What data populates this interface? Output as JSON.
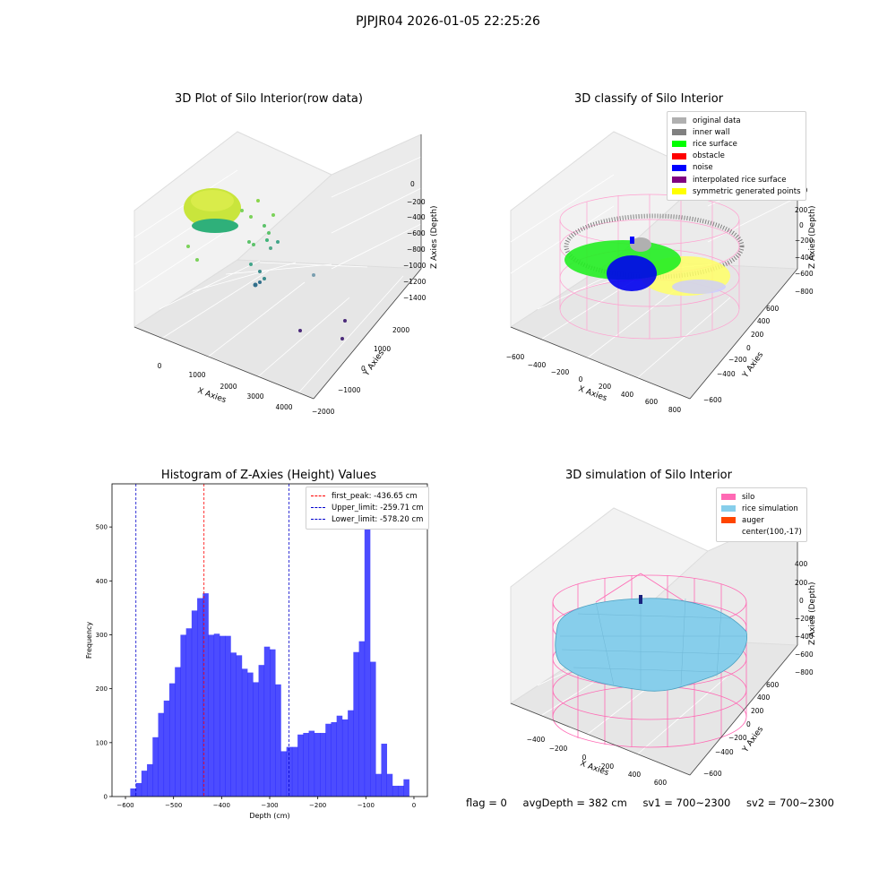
{
  "suptitle": "PJPJR04 2026-01-05 22:25:26",
  "status": {
    "flag": "flag = 0",
    "avg_depth": "avgDepth = 382 cm",
    "sv1": "sv1 = 700~2300",
    "sv2": "sv2 = 700~2300"
  },
  "colors": {
    "hist_bar": "#0000ff",
    "first_peak": "#ff0000",
    "limits": "#0000cc",
    "silo": "#ff69b4",
    "rice_sim": "#87ceeb",
    "auger": "#ff4500",
    "original": "#b0b0b0",
    "inner_wall": "#808080",
    "rice_surface": "#00ff00",
    "obstacle": "#ff0000",
    "noise": "#0000ff",
    "interp": "#800080",
    "symmetric": "#ffff00"
  },
  "plot1": {
    "title": "3D Plot of Silo Interior(row data)",
    "xlabel": "X Axies",
    "ylabel": "Y Axies",
    "zlabel": "Z Axies (Depth)",
    "xticks": [
      "0",
      "1000",
      "2000",
      "3000",
      "4000"
    ],
    "yticks": [
      "−2000",
      "−1000",
      "0",
      "1000",
      "2000"
    ],
    "zticks": [
      "0",
      "−200",
      "−400",
      "−600",
      "−800",
      "−1000",
      "−1200",
      "−1400"
    ]
  },
  "plot2": {
    "title": "3D classify of Silo Interior",
    "xlabel": "X Axies",
    "ylabel": "Y Axies",
    "zlabel": "Z Axies (Depth)",
    "xticks": [
      "−600",
      "−400",
      "−200",
      "0",
      "200",
      "400",
      "600",
      "800"
    ],
    "yticks": [
      "−600",
      "−400",
      "−200",
      "0",
      "200",
      "400",
      "600"
    ],
    "zticks": [
      "400",
      "200",
      "0",
      "−200",
      "−400",
      "−600",
      "−800"
    ],
    "legend": [
      {
        "label": "original data",
        "color": "#b0b0b0"
      },
      {
        "label": "inner wall",
        "color": "#808080"
      },
      {
        "label": "rice surface",
        "color": "#00ff00"
      },
      {
        "label": "obstacle",
        "color": "#ff0000"
      },
      {
        "label": "noise",
        "color": "#0000ff"
      },
      {
        "label": "interpolated rice surface",
        "color": "#800080"
      },
      {
        "label": "symmetric generated points",
        "color": "#ffff00"
      }
    ]
  },
  "plot4": {
    "title": "3D simulation of Silo Interior",
    "xlabel": "X Axies",
    "ylabel": "Y Axies",
    "zlabel": "Z Axies (Depth)",
    "xticks": [
      "−400",
      "−200",
      "0",
      "200",
      "400",
      "600"
    ],
    "yticks": [
      "−600",
      "−400",
      "−200",
      "0",
      "200",
      "400",
      "600"
    ],
    "zticks": [
      "400",
      "200",
      "0",
      "−200",
      "−400",
      "−600",
      "−800"
    ],
    "legend": [
      {
        "label": "silo",
        "color": "#ff69b4"
      },
      {
        "label": "rice simulation",
        "color": "#87ceeb"
      },
      {
        "label": "auger",
        "color": "#ff4500"
      },
      {
        "label": "center(100,-17)",
        "color": ""
      }
    ]
  },
  "chart_data": [
    {
      "type": "bar",
      "title": "Histogram of Z-Axies (Height) Values",
      "xlabel": "Depth (cm)",
      "ylabel": "Frequency",
      "xlim": [
        -628,
        28
      ],
      "ylim": [
        0,
        580
      ],
      "xticks": [
        -600,
        -500,
        -400,
        -300,
        -200,
        -100,
        0
      ],
      "yticks": [
        0,
        100,
        200,
        300,
        400,
        500
      ],
      "bin_start": -590,
      "bin_width": 11.6,
      "values": [
        15,
        25,
        48,
        60,
        110,
        155,
        178,
        210,
        240,
        300,
        312,
        345,
        368,
        377,
        300,
        302,
        298,
        298,
        267,
        262,
        237,
        230,
        212,
        244,
        278,
        273,
        208,
        84,
        92,
        92,
        115,
        118,
        122,
        118,
        118,
        135,
        138,
        150,
        143,
        160,
        268,
        288,
        548,
        250,
        42,
        98,
        42,
        20,
        20,
        32
      ],
      "lines": [
        {
          "label": "first_peak: -436.65 cm",
          "x": -436.65,
          "color": "#ff0000"
        },
        {
          "label": "Upper_limit: -259.71 cm",
          "x": -259.71,
          "color": "#0000cc"
        },
        {
          "label": "Lower_limit: -578.20 cm",
          "x": -578.2,
          "color": "#0000cc"
        }
      ],
      "legend": "top-right"
    }
  ]
}
